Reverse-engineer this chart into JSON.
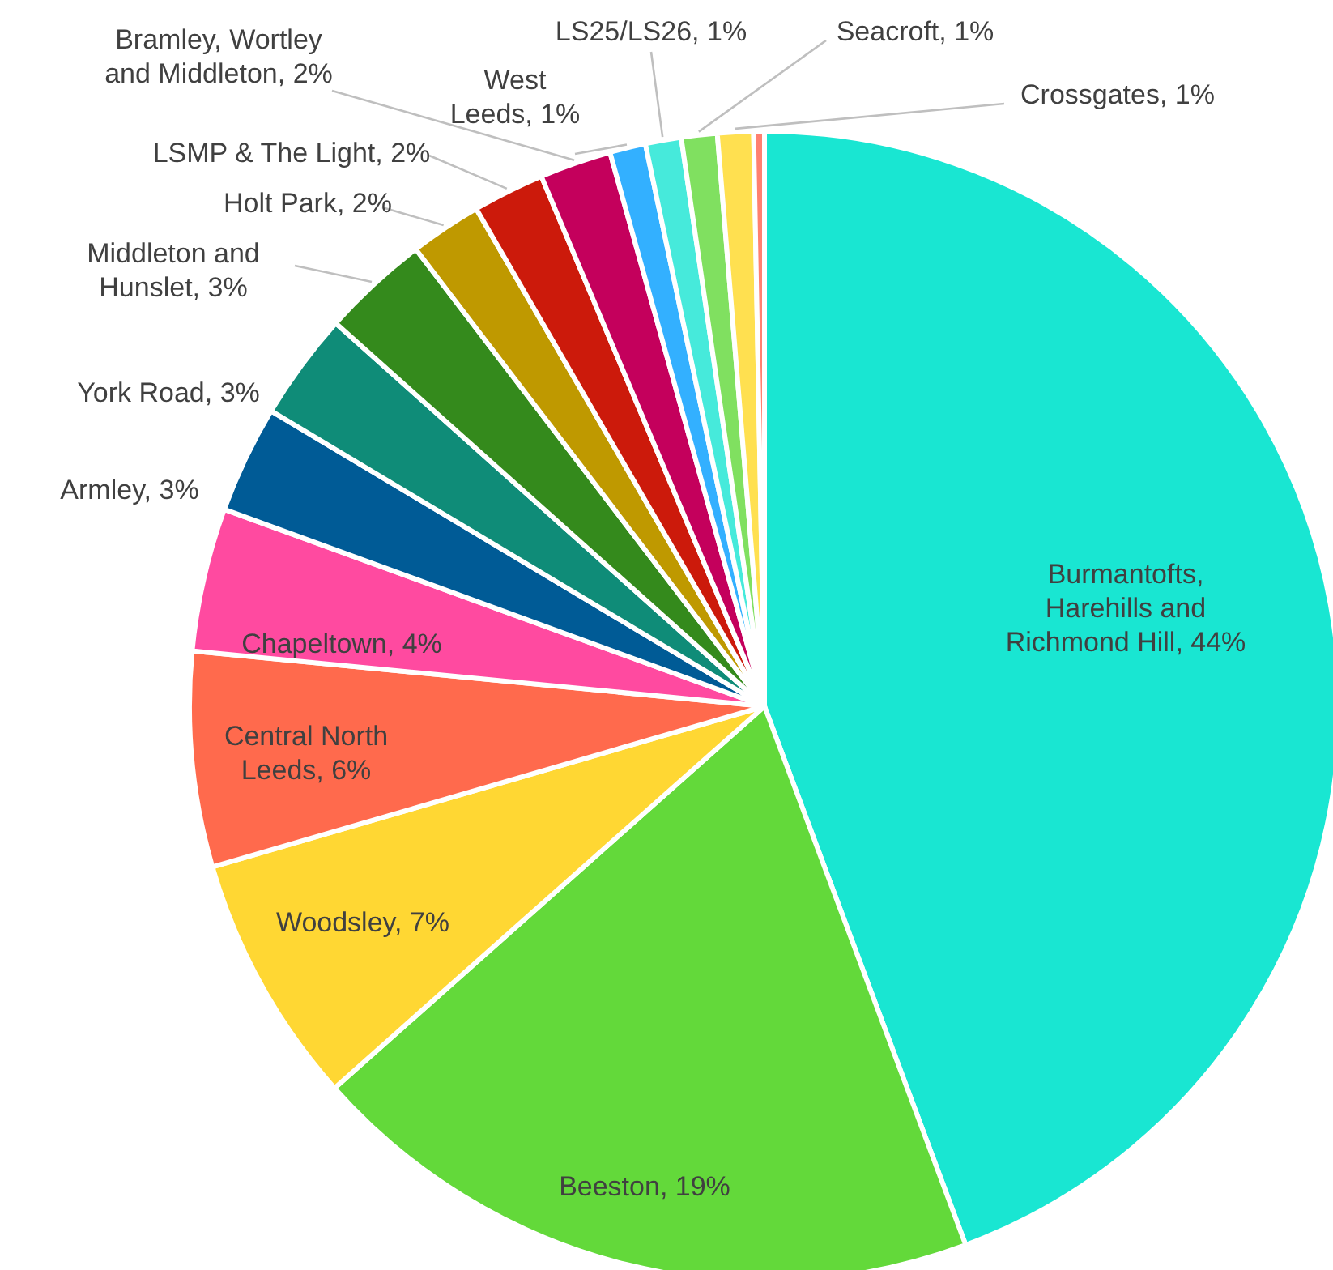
{
  "chart_data": {
    "type": "pie",
    "categories": [
      "Burmantofts, Harehills and Richmond Hill",
      "Beeston",
      "Woodsley",
      "Central North Leeds",
      "Chapeltown",
      "Armley",
      "York Road",
      "Middleton and Hunslet",
      "Holt Park",
      "LSMP & The Light",
      "Bramley, Wortley and Middleton",
      "West Leeds",
      "LS25/LS26",
      "Seacroft",
      "Crossgates",
      null
    ],
    "values": [
      44,
      19,
      7,
      6,
      4,
      3,
      3,
      3,
      2,
      2,
      2,
      1,
      1,
      1,
      1,
      0.3
    ],
    "value_labels": [
      "44%",
      "19%",
      "7%",
      "6%",
      "4%",
      "3%",
      "3%",
      "3%",
      "2%",
      "2%",
      "2%",
      "1%",
      "1%",
      "1%",
      "1%",
      null
    ],
    "colors": [
      "#19e6d2",
      "#63d93a",
      "#ffd733",
      "#ff6a4d",
      "#ff4aa0",
      "#005b96",
      "#0f8c78",
      "#348a1c",
      "#bf9900",
      "#cc1a0b",
      "#c4005c",
      "#33b0ff",
      "#46eadb",
      "#80e060",
      "#ffe050",
      "#ff8070"
    ]
  }
}
